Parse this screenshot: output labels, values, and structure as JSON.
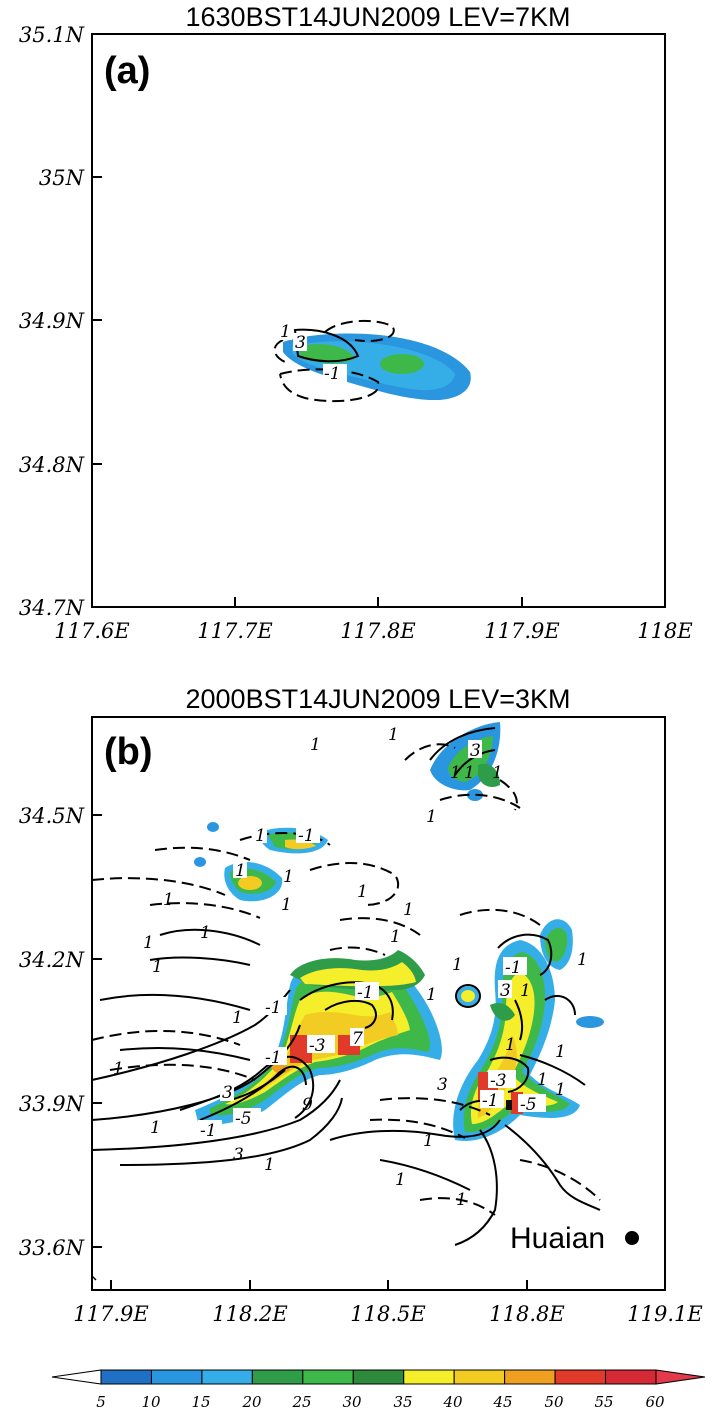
{
  "panels": [
    {
      "title": "1630BST14JUN2009   LEV=7KM",
      "label": "(a)",
      "y_ticks": [
        "35.1N",
        "35N",
        "34.9N",
        "34.8N",
        "34.7N"
      ],
      "x_ticks": [
        "117.6E",
        "117.7E",
        "117.8E",
        "117.9E",
        "118E"
      ],
      "contour_labels": [
        "1",
        "3",
        "-1"
      ]
    },
    {
      "title": "2000BST14JUN2009   LEV=3KM",
      "label": "(b)",
      "y_ticks": [
        "34.5N",
        "34.2N",
        "33.9N",
        "33.6N"
      ],
      "x_ticks": [
        "117.9E",
        "118.2E",
        "118.5E",
        "118.8E",
        "119.1E"
      ],
      "contour_labels": [
        "1",
        "-1",
        "3",
        "-3",
        "-5",
        "7",
        "9"
      ],
      "city": {
        "name": "Huaian",
        "lon": 119.05,
        "lat": 33.65
      }
    }
  ],
  "colorbar": {
    "ticks": [
      "5",
      "10",
      "15",
      "20",
      "25",
      "30",
      "35",
      "40",
      "45",
      "50",
      "55",
      "60"
    ],
    "colors": [
      "#ffffff",
      "#1f6fc4",
      "#2b96e0",
      "#35aee8",
      "#2e9c48",
      "#3fb84a",
      "#2d8a3a",
      "#f5ee2a",
      "#f2cc22",
      "#f0a020",
      "#e23a2a",
      "#d52a36",
      "#e23a4a"
    ]
  }
}
